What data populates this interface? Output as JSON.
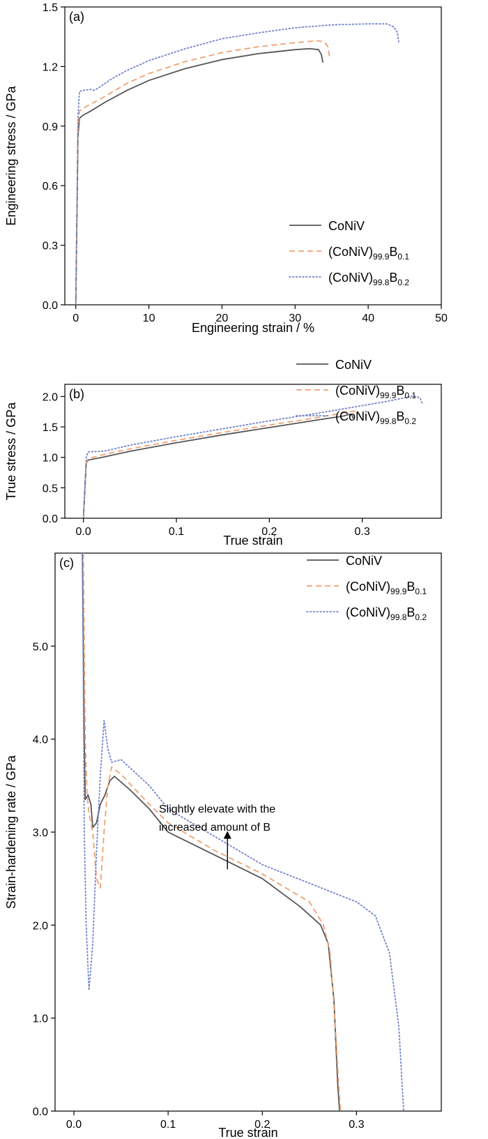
{
  "chart_data": [
    {
      "type": "line",
      "panel_label": "(a)",
      "xlabel": "Engineering strain / %",
      "ylabel": "Engineering stress / GPa",
      "xlim": [
        -1.5,
        50
      ],
      "ylim": [
        0.0,
        1.5
      ],
      "xticks": [
        0,
        10,
        20,
        30,
        40,
        50
      ],
      "yticks": [
        0.0,
        0.3,
        0.6,
        0.9,
        1.2,
        1.5
      ],
      "ytick_labels": [
        "0.0",
        "0.3",
        "0.6",
        "0.9",
        "1.2",
        "1.5"
      ],
      "grid": false,
      "legend_position": "bottom-right",
      "series": [
        {
          "name": "CoNiV",
          "name_main": "CoNiV",
          "sub1": "",
          "main2": "",
          "sub2": "",
          "color": "#555555",
          "dash": "solid",
          "points": [
            [
              0,
              0
            ],
            [
              0.3,
              0.85
            ],
            [
              0.5,
              0.94
            ],
            [
              1,
              0.955
            ],
            [
              2,
              0.975
            ],
            [
              4,
              1.02
            ],
            [
              7,
              1.08
            ],
            [
              10,
              1.13
            ],
            [
              15,
              1.19
            ],
            [
              20,
              1.235
            ],
            [
              25,
              1.265
            ],
            [
              30,
              1.285
            ],
            [
              32,
              1.29
            ],
            [
              33.2,
              1.285
            ],
            [
              33.6,
              1.26
            ],
            [
              33.8,
              1.22
            ]
          ]
        },
        {
          "name": "(CoNiV)99.9B0.1",
          "name_main": "(CoNiV)",
          "sub1": "99.9",
          "main2": "B",
          "sub2": "0.1",
          "color": "#f0a070",
          "dash": "dashed",
          "points": [
            [
              0,
              0
            ],
            [
              0.3,
              0.9
            ],
            [
              0.5,
              0.975
            ],
            [
              1,
              0.99
            ],
            [
              2,
              1.01
            ],
            [
              3,
              1.03
            ],
            [
              4,
              1.05
            ],
            [
              7,
              1.115
            ],
            [
              10,
              1.165
            ],
            [
              15,
              1.225
            ],
            [
              20,
              1.27
            ],
            [
              25,
              1.3
            ],
            [
              30,
              1.32
            ],
            [
              33,
              1.33
            ],
            [
              34,
              1.325
            ],
            [
              34.5,
              1.3
            ],
            [
              34.7,
              1.25
            ]
          ]
        },
        {
          "name": "(CoNiV)99.8B0.2",
          "name_main": "(CoNiV)",
          "sub1": "99.8",
          "main2": "B",
          "sub2": "0.2",
          "color": "#7080c8",
          "dash": "dotted",
          "points": [
            [
              0,
              0
            ],
            [
              0.3,
              0.95
            ],
            [
              0.5,
              1.075
            ],
            [
              1,
              1.08
            ],
            [
              2,
              1.085
            ],
            [
              2.5,
              1.08
            ],
            [
              3,
              1.09
            ],
            [
              5,
              1.14
            ],
            [
              7,
              1.18
            ],
            [
              10,
              1.23
            ],
            [
              15,
              1.29
            ],
            [
              20,
              1.34
            ],
            [
              25,
              1.37
            ],
            [
              30,
              1.395
            ],
            [
              35,
              1.41
            ],
            [
              40,
              1.415
            ],
            [
              42.5,
              1.415
            ],
            [
              43.5,
              1.4
            ],
            [
              44,
              1.37
            ],
            [
              44.2,
              1.32
            ]
          ]
        }
      ]
    },
    {
      "type": "line",
      "panel_label": "(b)",
      "xlabel": "True strain",
      "ylabel": "True stress / GPa",
      "xlim": [
        -0.02,
        0.385
      ],
      "ylim": [
        0.0,
        2.2
      ],
      "xticks": [
        0.0,
        0.1,
        0.2,
        0.3
      ],
      "yticks": [
        0.0,
        0.5,
        1.0,
        1.5,
        2.0
      ],
      "ytick_labels": [
        "0.0",
        "0.5",
        "1.0",
        "1.5",
        "2.0"
      ],
      "grid": false,
      "legend_position": "bottom-right",
      "series": [
        {
          "name": "CoNiV",
          "name_main": "CoNiV",
          "sub1": "",
          "main2": "",
          "sub2": "",
          "color": "#555555",
          "dash": "solid",
          "points": [
            [
              0,
              0
            ],
            [
              0.003,
              0.9
            ],
            [
              0.005,
              0.955
            ],
            [
              0.02,
              1.0
            ],
            [
              0.05,
              1.1
            ],
            [
              0.1,
              1.24
            ],
            [
              0.15,
              1.37
            ],
            [
              0.2,
              1.49
            ],
            [
              0.25,
              1.61
            ],
            [
              0.28,
              1.68
            ],
            [
              0.287,
              1.71
            ],
            [
              0.289,
              1.69
            ],
            [
              0.29,
              1.64
            ]
          ]
        },
        {
          "name": "(CoNiV)99.9B0.1",
          "name_main": "(CoNiV)",
          "sub1": "99.9",
          "main2": "B",
          "sub2": "0.1",
          "color": "#f0a070",
          "dash": "dashed",
          "points": [
            [
              0,
              0
            ],
            [
              0.003,
              0.9
            ],
            [
              0.005,
              0.98
            ],
            [
              0.02,
              1.04
            ],
            [
              0.05,
              1.14
            ],
            [
              0.1,
              1.28
            ],
            [
              0.15,
              1.41
            ],
            [
              0.2,
              1.53
            ],
            [
              0.25,
              1.65
            ],
            [
              0.28,
              1.73
            ],
            [
              0.29,
              1.76
            ],
            [
              0.296,
              1.74
            ],
            [
              0.298,
              1.66
            ]
          ]
        },
        {
          "name": "(CoNiV)99.8B0.2",
          "name_main": "(CoNiV)",
          "sub1": "99.8",
          "main2": "B",
          "sub2": "0.2",
          "color": "#7080c8",
          "dash": "dotted",
          "points": [
            [
              0,
              0
            ],
            [
              0.003,
              1.0
            ],
            [
              0.005,
              1.09
            ],
            [
              0.02,
              1.1
            ],
            [
              0.025,
              1.11
            ],
            [
              0.05,
              1.2
            ],
            [
              0.1,
              1.34
            ],
            [
              0.15,
              1.47
            ],
            [
              0.2,
              1.6
            ],
            [
              0.25,
              1.72
            ],
            [
              0.3,
              1.85
            ],
            [
              0.33,
              1.93
            ],
            [
              0.355,
              2.01
            ],
            [
              0.362,
              1.98
            ],
            [
              0.365,
              1.87
            ]
          ]
        }
      ]
    },
    {
      "type": "line",
      "panel_label": "(c)",
      "xlabel": "True strain",
      "ylabel": "Strain-hardening rate / GPa",
      "xlim": [
        -0.02,
        0.39
      ],
      "ylim": [
        0.0,
        6.0
      ],
      "xticks": [
        0.0,
        0.1,
        0.2,
        0.3
      ],
      "yticks": [
        0.0,
        1.0,
        2.0,
        3.0,
        4.0,
        5.0
      ],
      "ytick_labels": [
        "0.0",
        "1.0",
        "2.0",
        "3.0",
        "4.0",
        "5.0"
      ],
      "grid": false,
      "legend_position": "top-right",
      "annotation": {
        "line1": "Slightly elevate with the",
        "line2": "increased amount of B",
        "arrow_x": 0.163,
        "arrow_from_y": 2.6,
        "arrow_to_y": 3.0
      },
      "series": [
        {
          "name": "CoNiV",
          "name_main": "CoNiV",
          "sub1": "",
          "main2": "",
          "sub2": "",
          "color": "#555555",
          "dash": "solid",
          "points": [
            [
              0.009,
              6.0
            ],
            [
              0.011,
              4.0
            ],
            [
              0.012,
              3.35
            ],
            [
              0.015,
              3.4
            ],
            [
              0.018,
              3.3
            ],
            [
              0.02,
              3.05
            ],
            [
              0.024,
              3.1
            ],
            [
              0.028,
              3.3
            ],
            [
              0.033,
              3.4
            ],
            [
              0.038,
              3.55
            ],
            [
              0.043,
              3.6
            ],
            [
              0.06,
              3.45
            ],
            [
              0.08,
              3.25
            ],
            [
              0.1,
              3.0
            ],
            [
              0.15,
              2.75
            ],
            [
              0.2,
              2.5
            ],
            [
              0.24,
              2.2
            ],
            [
              0.262,
              2.0
            ],
            [
              0.27,
              1.8
            ],
            [
              0.276,
              1.2
            ],
            [
              0.28,
              0.3
            ],
            [
              0.282,
              0.0
            ]
          ]
        },
        {
          "name": "(CoNiV)99.9B0.1",
          "name_main": "(CoNiV)",
          "sub1": "99.9",
          "main2": "B",
          "sub2": "0.1",
          "color": "#f0a070",
          "dash": "dashed",
          "points": [
            [
              0.01,
              6.0
            ],
            [
              0.012,
              4.0
            ],
            [
              0.014,
              3.4
            ],
            [
              0.016,
              3.2
            ],
            [
              0.02,
              3.0
            ],
            [
              0.024,
              2.5
            ],
            [
              0.028,
              2.4
            ],
            [
              0.032,
              3.0
            ],
            [
              0.036,
              3.5
            ],
            [
              0.04,
              3.7
            ],
            [
              0.05,
              3.62
            ],
            [
              0.08,
              3.3
            ],
            [
              0.1,
              3.1
            ],
            [
              0.15,
              2.8
            ],
            [
              0.2,
              2.55
            ],
            [
              0.25,
              2.25
            ],
            [
              0.265,
              2.0
            ],
            [
              0.272,
              1.7
            ],
            [
              0.277,
              1.0
            ],
            [
              0.281,
              0.3
            ],
            [
              0.283,
              0.0
            ]
          ]
        },
        {
          "name": "(CoNiV)99.8B0.2",
          "name_main": "(CoNiV)",
          "sub1": "99.8",
          "main2": "B",
          "sub2": "0.2",
          "color": "#7080c8",
          "dash": "dotted",
          "points": [
            [
              0.009,
              6.0
            ],
            [
              0.01,
              4.5
            ],
            [
              0.011,
              3.0
            ],
            [
              0.013,
              2.0
            ],
            [
              0.016,
              1.3
            ],
            [
              0.02,
              1.8
            ],
            [
              0.024,
              2.8
            ],
            [
              0.028,
              3.6
            ],
            [
              0.032,
              4.2
            ],
            [
              0.036,
              3.9
            ],
            [
              0.04,
              3.75
            ],
            [
              0.05,
              3.78
            ],
            [
              0.08,
              3.5
            ],
            [
              0.1,
              3.25
            ],
            [
              0.15,
              2.95
            ],
            [
              0.2,
              2.65
            ],
            [
              0.25,
              2.45
            ],
            [
              0.3,
              2.25
            ],
            [
              0.32,
              2.1
            ],
            [
              0.335,
              1.7
            ],
            [
              0.345,
              0.9
            ],
            [
              0.35,
              0.0
            ]
          ]
        }
      ]
    }
  ]
}
